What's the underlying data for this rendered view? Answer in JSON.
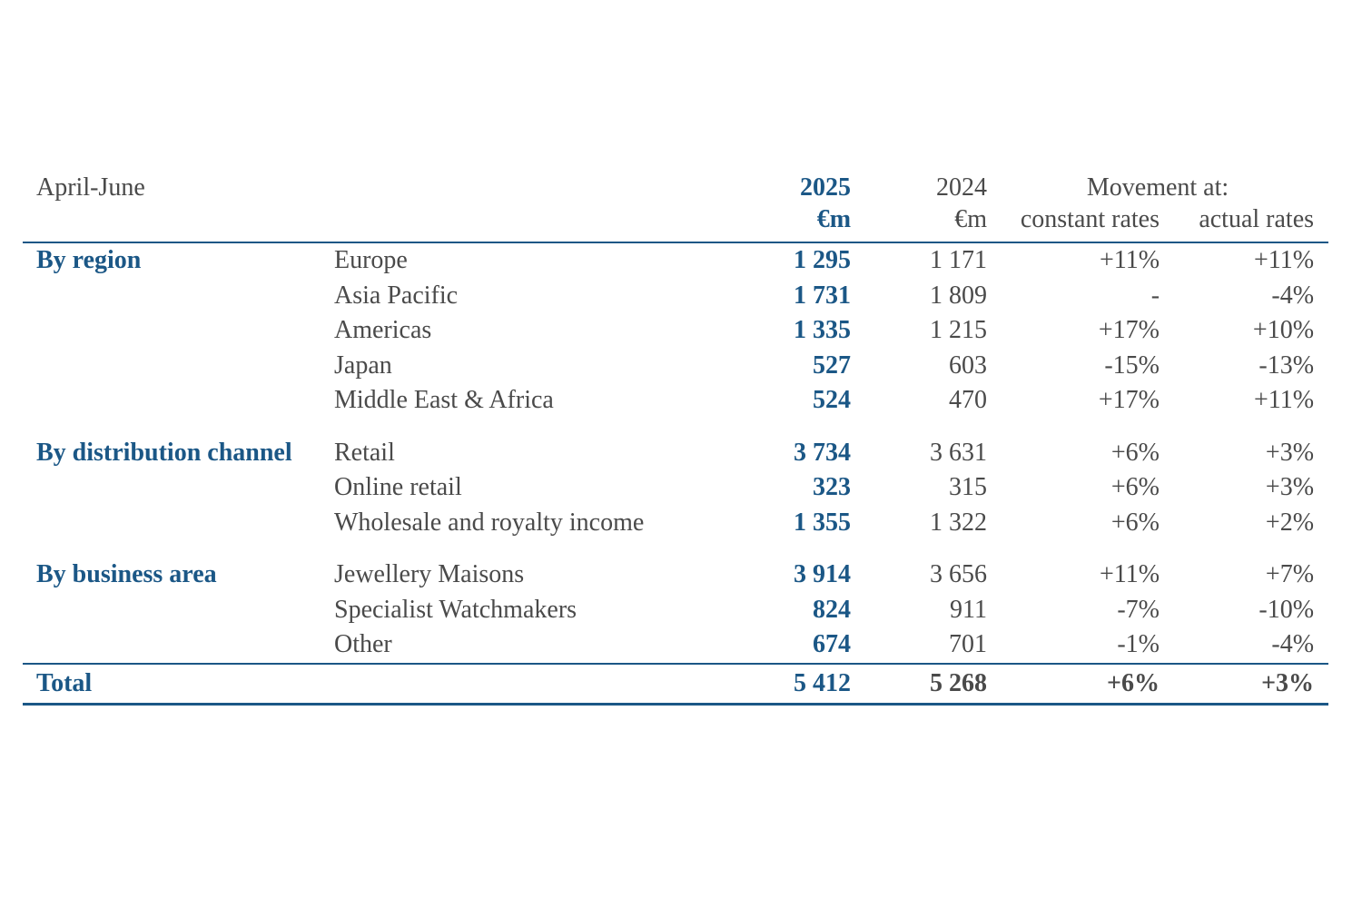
{
  "colors": {
    "accent_blue": "#1B5786",
    "text_gray": "#4A4A4A"
  },
  "table": {
    "header": {
      "period": "April-June",
      "year_current": "2025",
      "year_prior": "2024",
      "movement_label": "Movement at:",
      "unit_current": "€m",
      "unit_prior": "€m",
      "constant_label": "constant rates",
      "actual_label": "actual rates"
    },
    "sections": [
      {
        "label": "By region",
        "rows": [
          {
            "item": "Europe",
            "v2025": "1 295",
            "v2024": "1 171",
            "constant": "+11%",
            "actual": "+11%"
          },
          {
            "item": "Asia Pacific",
            "v2025": "1 731",
            "v2024": "1 809",
            "constant": "-",
            "actual": "-4%"
          },
          {
            "item": "Americas",
            "v2025": "1 335",
            "v2024": "1 215",
            "constant": "+17%",
            "actual": "+10%"
          },
          {
            "item": "Japan",
            "v2025": "527",
            "v2024": "603",
            "constant": "-15%",
            "actual": "-13%"
          },
          {
            "item": "Middle East & Africa",
            "v2025": "524",
            "v2024": "470",
            "constant": "+17%",
            "actual": "+11%"
          }
        ]
      },
      {
        "label": "By distribution channel",
        "rows": [
          {
            "item": "Retail",
            "v2025": "3 734",
            "v2024": "3 631",
            "constant": "+6%",
            "actual": "+3%"
          },
          {
            "item": "Online retail",
            "v2025": "323",
            "v2024": "315",
            "constant": "+6%",
            "actual": "+3%"
          },
          {
            "item": "Wholesale and royalty income",
            "v2025": "1 355",
            "v2024": "1 322",
            "constant": "+6%",
            "actual": "+2%"
          }
        ]
      },
      {
        "label": "By business area",
        "rows": [
          {
            "item": "Jewellery Maisons",
            "v2025": "3 914",
            "v2024": "3 656",
            "constant": "+11%",
            "actual": "+7%"
          },
          {
            "item": "Specialist Watchmakers",
            "v2025": "824",
            "v2024": "911",
            "constant": "-7%",
            "actual": "-10%"
          },
          {
            "item": "Other",
            "v2025": "674",
            "v2024": "701",
            "constant": "-1%",
            "actual": "-4%"
          }
        ]
      }
    ],
    "total": {
      "label": "Total",
      "v2025": "5 412",
      "v2024": "5 268",
      "constant": "+6%",
      "actual": "+3%"
    }
  }
}
